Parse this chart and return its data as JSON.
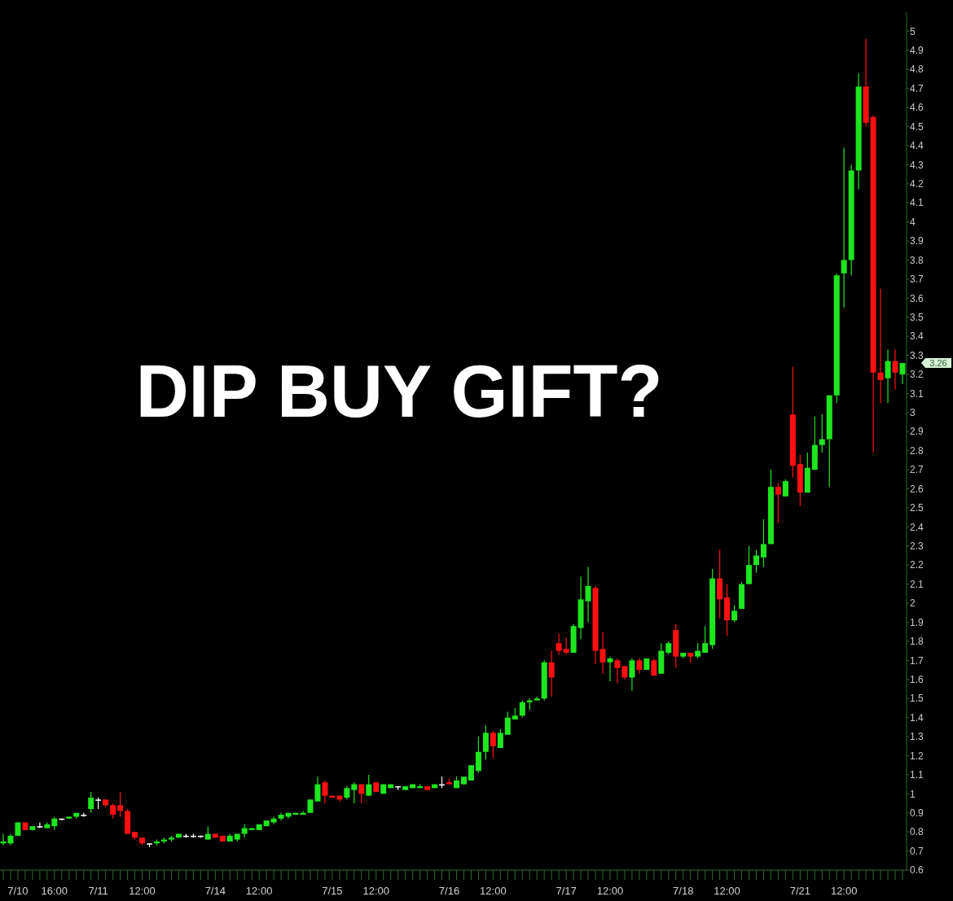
{
  "chart_data": {
    "type": "candlestick",
    "title": "DIP BUY GIFT?",
    "categories": [
      null,
      null,
      "7/10",
      null,
      null,
      null,
      null,
      "16:00",
      null,
      null,
      null,
      null,
      null,
      "7/11",
      null,
      null,
      null,
      null,
      null,
      "12:00",
      null,
      null,
      null,
      null,
      null,
      null,
      null,
      null,
      null,
      "7/14",
      null,
      null,
      null,
      null,
      null,
      "12:00",
      null,
      null,
      null,
      null,
      null,
      null,
      null,
      null,
      null,
      "7/15",
      null,
      null,
      null,
      null,
      null,
      "12:00",
      null,
      null,
      null,
      null,
      null,
      null,
      null,
      null,
      null,
      "7/16",
      null,
      null,
      null,
      null,
      null,
      "12:00",
      null,
      null,
      null,
      null,
      null,
      null,
      null,
      null,
      null,
      "7/17",
      null,
      null,
      null,
      null,
      null,
      "12:00",
      null,
      null,
      null,
      null,
      null,
      null,
      null,
      null,
      null,
      "7/18",
      null,
      null,
      null,
      null,
      null,
      "12:00",
      null,
      null,
      null,
      null,
      null,
      null,
      null,
      null,
      null,
      "7/21",
      null,
      null,
      null,
      null,
      null,
      "12:00",
      null,
      null,
      null,
      null,
      null,
      null,
      null,
      null
    ],
    "ohlc": [
      [
        0.74,
        0.79,
        0.73,
        0.75
      ],
      [
        0.74,
        0.79,
        0.73,
        0.78
      ],
      [
        0.78,
        0.85,
        0.78,
        0.85
      ],
      [
        0.85,
        0.85,
        0.81,
        0.81
      ],
      [
        0.81,
        0.83,
        0.81,
        0.83
      ],
      [
        0.83,
        0.85,
        0.82,
        0.83
      ],
      [
        0.82,
        0.85,
        0.82,
        0.84
      ],
      [
        0.83,
        0.88,
        0.81,
        0.87
      ],
      [
        0.87,
        0.87,
        0.86,
        0.87
      ],
      [
        0.87,
        0.88,
        0.87,
        0.88
      ],
      [
        0.88,
        0.9,
        0.87,
        0.9
      ],
      [
        0.89,
        0.9,
        0.88,
        0.89
      ],
      [
        0.92,
        1.01,
        0.9,
        0.98
      ],
      [
        0.97,
        0.98,
        0.92,
        0.97
      ],
      [
        0.97,
        0.97,
        0.93,
        0.94
      ],
      [
        0.94,
        0.95,
        0.87,
        0.89
      ],
      [
        0.94,
        1.01,
        0.88,
        0.91
      ],
      [
        0.91,
        0.92,
        0.79,
        0.79
      ],
      [
        0.8,
        0.8,
        0.76,
        0.77
      ],
      [
        0.77,
        0.77,
        0.73,
        0.74
      ],
      [
        0.74,
        0.74,
        0.72,
        0.74
      ],
      [
        0.74,
        0.76,
        0.73,
        0.75
      ],
      [
        0.75,
        0.77,
        0.74,
        0.76
      ],
      [
        0.76,
        0.78,
        0.75,
        0.77
      ],
      [
        0.77,
        0.79,
        0.77,
        0.79
      ],
      [
        0.78,
        0.79,
        0.77,
        0.78
      ],
      [
        0.78,
        0.79,
        0.77,
        0.78
      ],
      [
        0.78,
        0.78,
        0.77,
        0.78
      ],
      [
        0.76,
        0.83,
        0.76,
        0.79
      ],
      [
        0.79,
        0.79,
        0.77,
        0.77
      ],
      [
        0.78,
        0.78,
        0.75,
        0.75
      ],
      [
        0.75,
        0.79,
        0.75,
        0.78
      ],
      [
        0.76,
        0.79,
        0.75,
        0.79
      ],
      [
        0.79,
        0.84,
        0.77,
        0.82
      ],
      [
        0.81,
        0.82,
        0.81,
        0.82
      ],
      [
        0.81,
        0.84,
        0.81,
        0.84
      ],
      [
        0.83,
        0.86,
        0.83,
        0.86
      ],
      [
        0.85,
        0.88,
        0.84,
        0.87
      ],
      [
        0.87,
        0.9,
        0.86,
        0.89
      ],
      [
        0.88,
        0.9,
        0.87,
        0.9
      ],
      [
        0.89,
        0.9,
        0.89,
        0.9
      ],
      [
        0.89,
        0.91,
        0.89,
        0.9
      ],
      [
        0.9,
        0.97,
        0.9,
        0.97
      ],
      [
        0.96,
        1.09,
        0.96,
        1.05
      ],
      [
        1.06,
        1.07,
        0.95,
        0.99
      ],
      [
        0.99,
        0.99,
        0.98,
        0.98
      ],
      [
        0.99,
        0.99,
        0.96,
        0.97
      ],
      [
        0.98,
        1.04,
        0.97,
        1.03
      ],
      [
        1.02,
        1.06,
        0.95,
        1.05
      ],
      [
        1.05,
        1.05,
        0.95,
        1
      ],
      [
        0.99,
        1.1,
        0.99,
        1.05
      ],
      [
        1.06,
        1.06,
        1.01,
        1.01
      ],
      [
        1,
        1.05,
        1,
        1.05
      ],
      [
        1.03,
        1.05,
        1.03,
        1.05
      ],
      [
        1.04,
        1.04,
        1.02,
        1.04
      ],
      [
        1.02,
        1.04,
        1.02,
        1.04
      ],
      [
        1.03,
        1.05,
        1.03,
        1.05
      ],
      [
        1.03,
        1.05,
        1.03,
        1.04
      ],
      [
        1.04,
        1.04,
        1.02,
        1.02
      ],
      [
        1.03,
        1.05,
        1.03,
        1.05
      ],
      [
        1.05,
        1.09,
        1.03,
        1.05
      ],
      [
        1.06,
        1.08,
        1.05,
        1.05
      ],
      [
        1.03,
        1.09,
        1.03,
        1.07
      ],
      [
        1.05,
        1.09,
        1.05,
        1.09
      ],
      [
        1.07,
        1.15,
        1.07,
        1.15
      ],
      [
        1.12,
        1.3,
        1.11,
        1.22
      ],
      [
        1.22,
        1.36,
        1.18,
        1.32
      ],
      [
        1.32,
        1.33,
        1.19,
        1.25
      ],
      [
        1.24,
        1.34,
        1.24,
        1.32
      ],
      [
        1.31,
        1.43,
        1.31,
        1.4
      ],
      [
        1.39,
        1.45,
        1.39,
        1.41
      ],
      [
        1.41,
        1.49,
        1.4,
        1.48
      ],
      [
        1.48,
        1.5,
        1.44,
        1.49
      ],
      [
        1.49,
        1.51,
        1.49,
        1.5
      ],
      [
        1.5,
        1.7,
        1.49,
        1.69
      ],
      [
        1.69,
        1.75,
        1.51,
        1.61
      ],
      [
        1.79,
        1.84,
        1.73,
        1.75
      ],
      [
        1.76,
        1.82,
        1.73,
        1.74
      ],
      [
        1.74,
        1.89,
        1.74,
        1.88
      ],
      [
        1.87,
        2.14,
        1.81,
        2.02
      ],
      [
        2.01,
        2.19,
        1.9,
        2.09
      ],
      [
        2.08,
        2.09,
        1.68,
        1.75
      ],
      [
        1.76,
        1.85,
        1.63,
        1.69
      ],
      [
        1.69,
        1.72,
        1.59,
        1.71
      ],
      [
        1.7,
        1.71,
        1.58,
        1.66
      ],
      [
        1.67,
        1.67,
        1.6,
        1.61
      ],
      [
        1.61,
        1.71,
        1.54,
        1.7
      ],
      [
        1.7,
        1.71,
        1.63,
        1.65
      ],
      [
        1.65,
        1.71,
        1.65,
        1.71
      ],
      [
        1.7,
        1.71,
        1.62,
        1.62
      ],
      [
        1.63,
        1.79,
        1.63,
        1.75
      ],
      [
        1.74,
        1.8,
        1.73,
        1.79
      ],
      [
        1.86,
        1.89,
        1.66,
        1.72
      ],
      [
        1.72,
        1.74,
        1.71,
        1.74
      ],
      [
        1.74,
        1.74,
        1.69,
        1.72
      ],
      [
        1.72,
        1.79,
        1.71,
        1.75
      ],
      [
        1.74,
        1.88,
        1.74,
        1.79
      ],
      [
        1.78,
        2.18,
        1.76,
        2.13
      ],
      [
        2.13,
        2.28,
        1.92,
        2.02
      ],
      [
        2.03,
        2.1,
        1.83,
        1.91
      ],
      [
        1.91,
        1.99,
        1.9,
        1.96
      ],
      [
        1.97,
        2.11,
        1.97,
        2.1
      ],
      [
        2.1,
        2.3,
        2.1,
        2.2
      ],
      [
        2.2,
        2.28,
        2.16,
        2.25
      ],
      [
        2.24,
        2.44,
        2.19,
        2.31
      ],
      [
        2.31,
        2.7,
        2.31,
        2.61
      ],
      [
        2.61,
        2.63,
        2.42,
        2.57
      ],
      [
        2.56,
        2.65,
        2.56,
        2.64
      ],
      [
        2.99,
        3.24,
        2.66,
        2.72
      ],
      [
        2.73,
        2.78,
        2.51,
        2.58
      ],
      [
        2.58,
        2.79,
        2.58,
        2.71
      ],
      [
        2.7,
        2.98,
        2.7,
        2.83
      ],
      [
        2.83,
        2.99,
        2.79,
        2.86
      ],
      [
        2.86,
        3.09,
        2.61,
        3.09
      ],
      [
        3.09,
        3.73,
        3.05,
        3.72
      ],
      [
        3.73,
        4.39,
        3.55,
        3.8
      ],
      [
        3.8,
        4.3,
        3.72,
        4.27
      ],
      [
        4.27,
        4.78,
        4.17,
        4.71
      ],
      [
        4.71,
        4.96,
        4.5,
        4.52
      ],
      [
        4.55,
        4.56,
        2.79,
        3.21
      ],
      [
        3.21,
        3.65,
        3.05,
        3.17
      ],
      [
        3.18,
        3.33,
        3.05,
        3.27
      ],
      [
        3.27,
        3.33,
        3.12,
        3.21
      ],
      [
        3.2,
        3.26,
        3.15,
        3.26
      ]
    ],
    "ylim": [
      0.6,
      5.1
    ],
    "yticks": [
      0.6,
      0.7,
      0.8,
      0.9,
      1,
      1.1,
      1.2,
      1.3,
      1.4,
      1.5,
      1.6,
      1.7,
      1.8,
      1.9,
      2,
      2.1,
      2.2,
      2.3,
      2.4,
      2.5,
      2.6,
      2.7,
      2.8,
      2.9,
      3,
      3.1,
      3.2,
      3.3,
      3.4,
      3.5,
      3.6,
      3.7,
      3.8,
      3.9,
      4,
      4.1,
      4.2,
      4.3,
      4.4,
      4.5,
      4.6,
      4.7,
      4.8,
      4.9,
      5
    ],
    "annotations": [
      "3.26"
    ]
  }
}
